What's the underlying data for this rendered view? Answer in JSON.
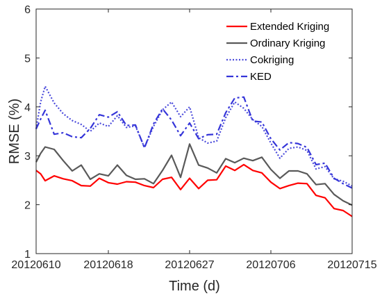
{
  "chart_data": {
    "type": "line",
    "xlabel": "Time (d)",
    "ylabel": "RMSE (%)",
    "ylim": [
      1,
      6
    ],
    "yticks": [
      1,
      2,
      3,
      4,
      5,
      6
    ],
    "xlim": [
      0,
      35
    ],
    "xticks": [
      {
        "x": 0,
        "label": "20120610"
      },
      {
        "x": 8,
        "label": "20120618"
      },
      {
        "x": 17,
        "label": "20120627"
      },
      {
        "x": 26,
        "label": "20120706"
      },
      {
        "x": 35,
        "label": "20120715"
      }
    ],
    "grid": false,
    "legend_position": "top-right",
    "x": [
      0,
      0.5,
      1,
      2,
      3,
      4,
      5,
      6,
      7,
      8,
      9,
      10,
      11,
      12,
      13,
      14,
      15,
      16,
      17,
      18,
      19,
      20,
      21,
      22,
      23,
      24,
      25,
      26,
      27,
      28,
      29,
      30,
      31,
      32,
      33,
      34,
      35
    ],
    "series": [
      {
        "name": "Extended Kriging",
        "color": "#ff0000",
        "dash": "solid",
        "values": [
          2.7,
          2.63,
          2.49,
          2.59,
          2.53,
          2.49,
          2.39,
          2.38,
          2.54,
          2.45,
          2.42,
          2.47,
          2.46,
          2.39,
          2.35,
          2.52,
          2.56,
          2.31,
          2.54,
          2.33,
          2.5,
          2.51,
          2.79,
          2.7,
          2.82,
          2.7,
          2.65,
          2.46,
          2.33,
          2.39,
          2.44,
          2.43,
          2.19,
          2.14,
          1.92,
          1.88,
          1.76
        ]
      },
      {
        "name": "Ordinary Kriging",
        "color": "#595959",
        "dash": "solid",
        "values": [
          2.87,
          3.05,
          3.18,
          3.13,
          2.9,
          2.69,
          2.81,
          2.52,
          2.63,
          2.59,
          2.81,
          2.6,
          2.52,
          2.53,
          2.43,
          2.7,
          3.01,
          2.56,
          3.24,
          2.81,
          2.75,
          2.65,
          2.94,
          2.86,
          2.95,
          2.9,
          2.97,
          2.72,
          2.54,
          2.69,
          2.69,
          2.63,
          2.41,
          2.43,
          2.21,
          2.08,
          1.99
        ]
      },
      {
        "name": "Cokriging",
        "color": "#4a4adb",
        "dash": "dotted",
        "values": [
          3.55,
          4.1,
          4.42,
          4.08,
          3.86,
          3.72,
          3.64,
          3.5,
          3.67,
          3.6,
          3.82,
          3.58,
          3.61,
          3.17,
          3.6,
          3.94,
          4.1,
          3.8,
          4.0,
          3.37,
          3.26,
          3.3,
          3.78,
          4.1,
          3.97,
          3.74,
          3.6,
          3.26,
          2.95,
          3.15,
          3.18,
          3.11,
          2.73,
          2.78,
          2.53,
          2.48,
          2.38
        ]
      },
      {
        "name": "KED",
        "color": "#3535d9",
        "dash": "dashdot",
        "values": [
          3.55,
          3.75,
          3.93,
          3.44,
          3.47,
          3.39,
          3.37,
          3.56,
          3.84,
          3.79,
          3.9,
          3.62,
          3.63,
          3.16,
          3.65,
          3.96,
          3.73,
          3.41,
          3.67,
          3.35,
          3.43,
          3.44,
          3.88,
          4.18,
          4.2,
          3.71,
          3.69,
          3.35,
          3.12,
          3.27,
          3.25,
          3.17,
          2.82,
          2.85,
          2.54,
          2.43,
          2.34
        ]
      }
    ]
  }
}
